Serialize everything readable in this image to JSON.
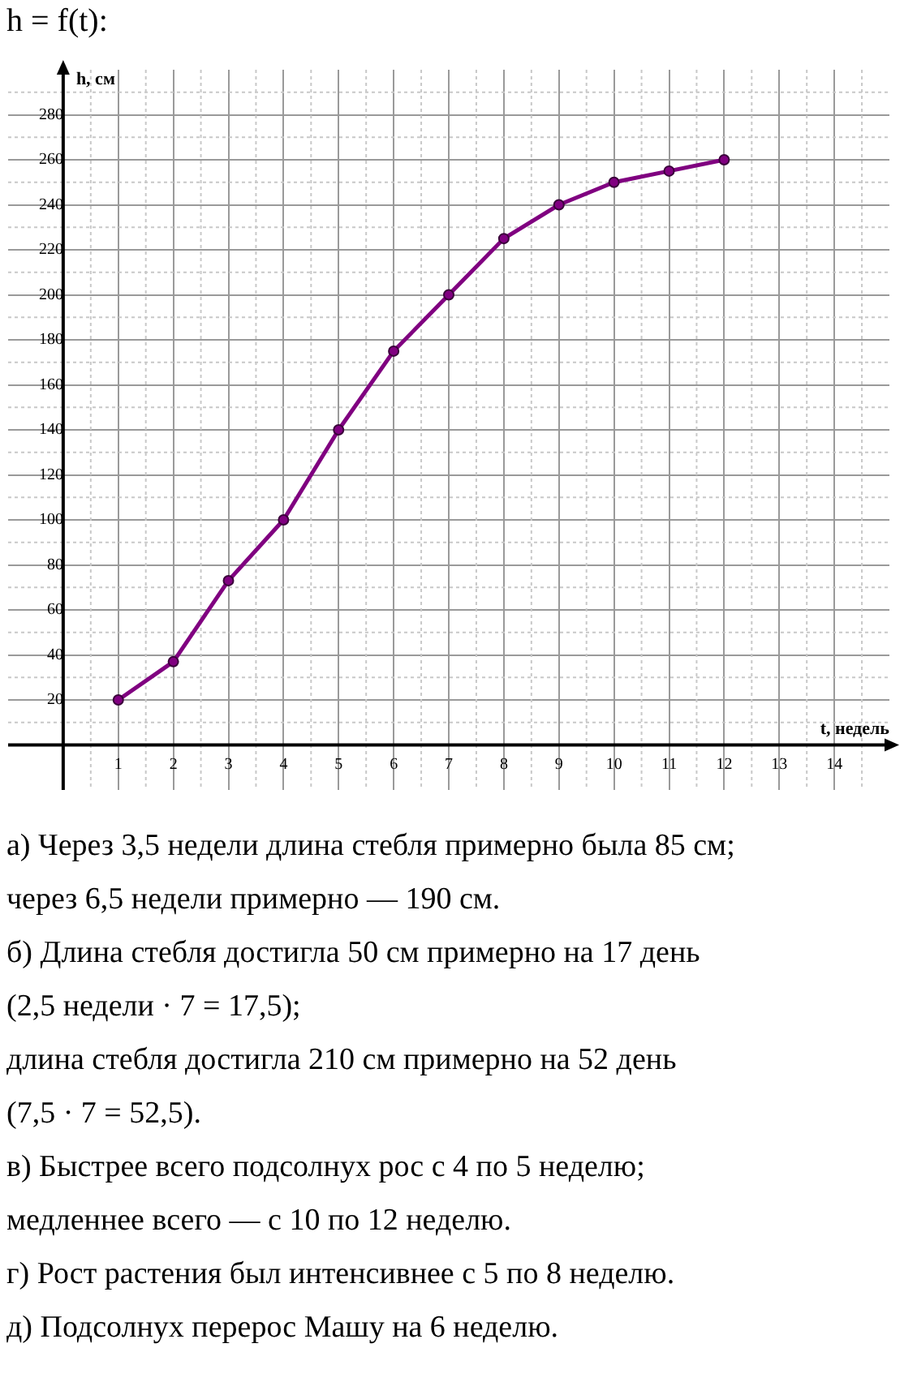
{
  "chart_data": {
    "type": "line",
    "title": "h = f(t):",
    "xlabel": "t, недель",
    "ylabel": "h, см",
    "x": [
      1,
      2,
      3,
      4,
      5,
      6,
      7,
      8,
      9,
      10,
      11,
      12
    ],
    "series": [
      {
        "color": "#800080",
        "values": [
          20,
          37,
          73,
          100,
          140,
          175,
          200,
          225,
          240,
          250,
          255,
          260
        ]
      }
    ],
    "xlim": [
      -1,
      15
    ],
    "ylim": [
      -20,
      300
    ],
    "xticks": [
      1,
      2,
      3,
      4,
      5,
      6,
      7,
      8,
      9,
      10,
      11,
      12,
      13,
      14
    ],
    "yticks": [
      20,
      40,
      60,
      80,
      100,
      120,
      140,
      160,
      180,
      200,
      220,
      240,
      260,
      280
    ],
    "grid": true,
    "marker": "circle",
    "line_style": "solid",
    "annotations": [
      "а) Через 3,5 недели длина стебля примерно была 85 см;",
      "через 6,5 недели примерно — 190 см.",
      "б) Длина стебля достигла 50 см примерно на 17 день",
      "(2,5 недели · 7 = 17,5);",
      "длина стебля достигла 210 см примерно на 52 день",
      "(7,5 · 7 = 52,5).",
      "в) Быстрее всего подсолнух рос с 4 по 5 неделю;",
      "медленнее всего — с 10 по 12 неделю.",
      "г) Рост растения был интенсивнее с 5 по 8 неделю.",
      "д) Подсолнух перерос Машу на 6 неделю."
    ]
  }
}
